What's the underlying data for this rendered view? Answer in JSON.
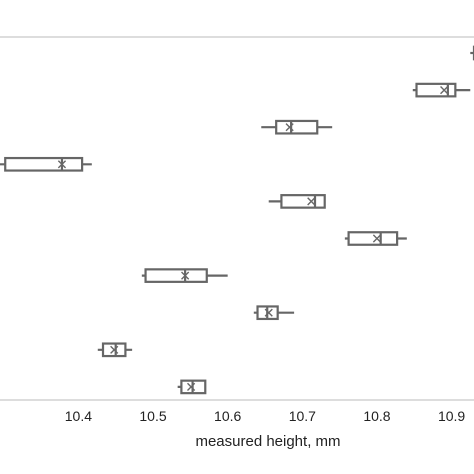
{
  "chart_data": {
    "type": "boxplot",
    "orientation": "horizontal",
    "title": "",
    "xlabel": "measured height, mm",
    "ylabel": "",
    "xlim": [
      10.295,
      10.93
    ],
    "x_ticks": [
      10.4,
      10.5,
      10.6,
      10.7,
      10.8,
      10.9
    ],
    "x_tick_labels": [
      "10.4",
      "10.5",
      "10.6",
      "10.7",
      "10.8",
      "10.9"
    ],
    "grid": false,
    "legend": "none",
    "box_color": "#666666",
    "boxes": [
      {
        "min": 10.925,
        "q1": 10.93,
        "median": 10.93,
        "q3": 10.93,
        "max": 10.93,
        "mean": 10.93,
        "partial": true
      },
      {
        "min": 10.848,
        "q1": 10.853,
        "median": 10.895,
        "q3": 10.905,
        "max": 10.925,
        "mean": 10.89
      },
      {
        "min": 10.645,
        "q1": 10.665,
        "median": 10.685,
        "q3": 10.72,
        "max": 10.74,
        "mean": 10.683
      },
      {
        "min": 10.295,
        "q1": 10.302,
        "median": 10.378,
        "q3": 10.405,
        "max": 10.418,
        "mean": 10.378
      },
      {
        "min": 10.655,
        "q1": 10.672,
        "median": 10.717,
        "q3": 10.73,
        "max": 10.73,
        "mean": 10.712
      },
      {
        "min": 10.757,
        "q1": 10.762,
        "median": 10.805,
        "q3": 10.827,
        "max": 10.84,
        "mean": 10.8
      },
      {
        "min": 10.485,
        "q1": 10.49,
        "median": 10.543,
        "q3": 10.572,
        "max": 10.6,
        "mean": 10.543
      },
      {
        "min": 10.635,
        "q1": 10.64,
        "median": 10.653,
        "q3": 10.667,
        "max": 10.689,
        "mean": 10.655
      },
      {
        "min": 10.426,
        "q1": 10.433,
        "median": 10.45,
        "q3": 10.463,
        "max": 10.472,
        "mean": 10.448
      },
      {
        "min": 10.533,
        "q1": 10.538,
        "median": 10.553,
        "q3": 10.57,
        "max": 10.57,
        "mean": 10.551
      }
    ]
  }
}
